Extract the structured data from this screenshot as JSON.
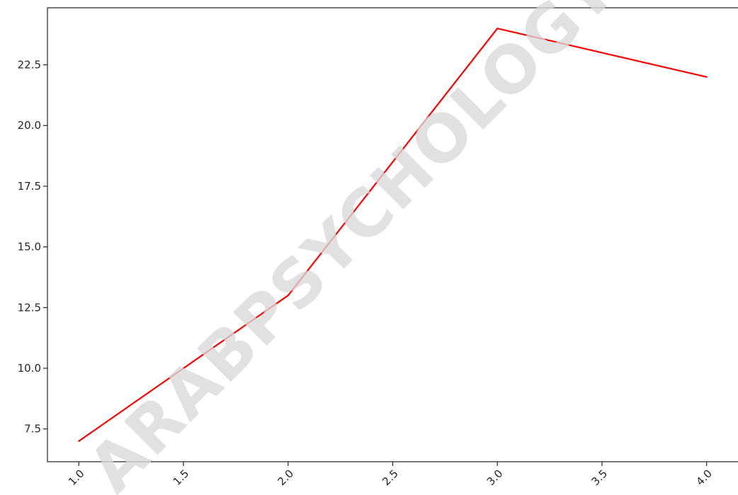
{
  "watermark_text": "ARABPSYCHOLOGY",
  "chart_data": {
    "type": "line",
    "title": "",
    "xlabel": "",
    "ylabel": "",
    "x": [
      1.0,
      2.0,
      3.0,
      4.0
    ],
    "series": [
      {
        "values": [
          7.0,
          13.0,
          24.0,
          22.0
        ],
        "color": "#ff0000"
      }
    ],
    "xlim": [
      0.85,
      4.15
    ],
    "ylim": [
      6.15,
      24.85
    ],
    "xticks": [
      1.0,
      1.5,
      2.0,
      2.5,
      3.0,
      3.5,
      4.0
    ],
    "xtick_labels": [
      "1.0",
      "1.5",
      "2.0",
      "2.5",
      "3.0",
      "3.5",
      "4.0"
    ],
    "yticks": [
      7.5,
      10.0,
      12.5,
      15.0,
      17.5,
      20.0,
      22.5
    ],
    "ytick_labels": [
      "7.5",
      "10.0",
      "12.5",
      "15.0",
      "17.5",
      "20.0",
      "22.5"
    ],
    "xtick_rotation_deg": 45,
    "grid": false,
    "legend": "none"
  }
}
